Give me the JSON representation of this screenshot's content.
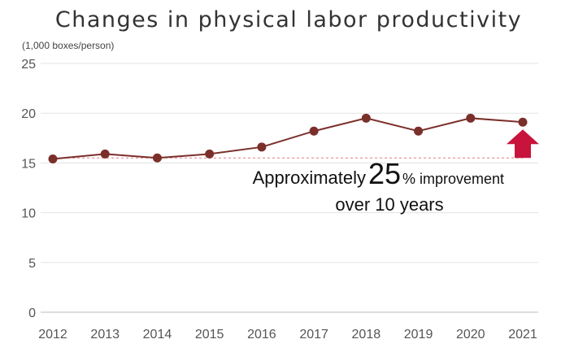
{
  "chart_data": {
    "type": "line",
    "title": "Changes in physical labor productivity",
    "unit_label": "(1,000 boxes/person)",
    "xlabel": "",
    "ylabel": "",
    "categories": [
      "2012",
      "2013",
      "2014",
      "2015",
      "2016",
      "2017",
      "2018",
      "2019",
      "2020",
      "2021"
    ],
    "series": [
      {
        "values": [
          15.4,
          15.9,
          15.5,
          15.9,
          16.6,
          18.2,
          19.5,
          18.2,
          19.5,
          19.1
        ]
      }
    ],
    "ylim": [
      0,
      25
    ],
    "yticks": [
      0,
      5,
      10,
      15,
      20,
      25
    ],
    "grid": true,
    "reference_line_value": 15.5,
    "annotation": {
      "prefix": "Approximately",
      "value": "25",
      "suffix": "% improvement",
      "line2": "over 10 years"
    },
    "colors": {
      "line": "#7b2f2a",
      "marker": "#7b2f2a",
      "arrow": "#c8143c",
      "grid": "#e3e3e3",
      "reference": "#e07a88"
    }
  }
}
